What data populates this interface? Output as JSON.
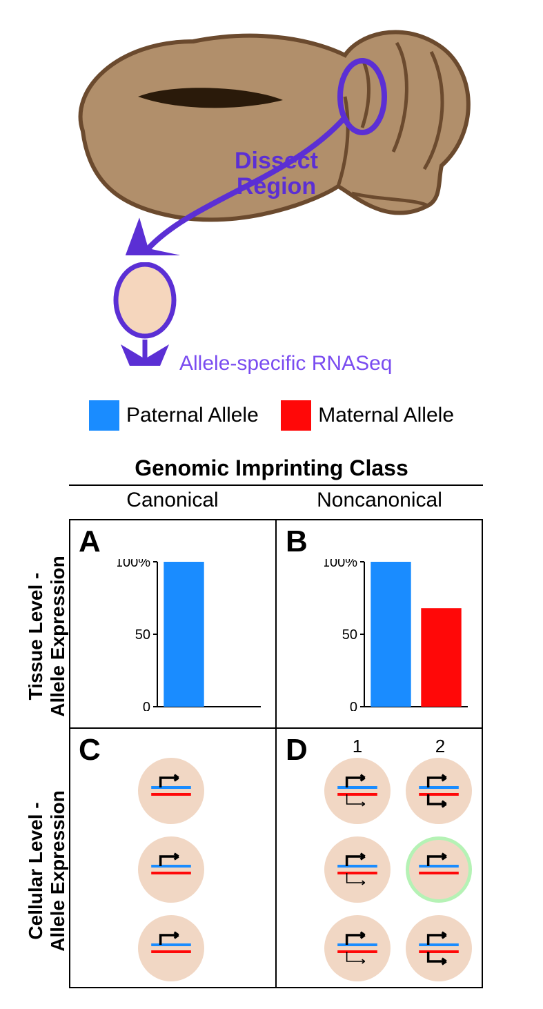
{
  "colors": {
    "brain_fill": "#b18f6b",
    "brain_stroke": "#6b4a2e",
    "brain_shadow": "#8a6a4a",
    "ventricle": "#2a1a0a",
    "region_stroke": "#5b2fd4",
    "region_fill": "#f5d6bd",
    "arrow": "#5b2fd4",
    "paternal": "#1a8cff",
    "maternal": "#ff0808",
    "cell_fill": "#f1d7c4",
    "cell_highlight": "#b5f2b5",
    "axis": "#000000",
    "gene_black": "#000000",
    "background": "#ffffff"
  },
  "labels": {
    "dissect": "Dissect\nRegion",
    "rnaseq": "Allele-specific RNASeq",
    "paternal": "Paternal Allele",
    "maternal": "Maternal Allele",
    "table_title": "Genomic Imprinting Class",
    "col_canonical": "Canonical",
    "col_noncanonical": "Noncanonical",
    "row_tissue": "Tissue Level -\nAllele Expression",
    "row_cellular": "Cellular Level -\nAllele Expression"
  },
  "panels": {
    "A": "A",
    "B": "B",
    "C": "C",
    "D": "D",
    "D1": "1",
    "D2": "2"
  },
  "chartA": {
    "type": "bar",
    "ylim": [
      0,
      100
    ],
    "yticks": [
      0,
      50,
      100
    ],
    "ytick_labels": [
      "0",
      "50",
      "100%"
    ],
    "bars": [
      {
        "value": 100,
        "color": "#1a8cff"
      },
      {
        "value": 0,
        "color": "#ff0808"
      }
    ],
    "bar_width": 0.8,
    "axis_color": "#000000"
  },
  "chartB": {
    "type": "bar",
    "ylim": [
      0,
      100
    ],
    "yticks": [
      0,
      50,
      100
    ],
    "ytick_labels": [
      "0",
      "50",
      "100%"
    ],
    "bars": [
      {
        "value": 100,
        "color": "#1a8cff"
      },
      {
        "value": 68,
        "color": "#ff0808"
      }
    ],
    "bar_width": 0.8,
    "axis_color": "#000000"
  },
  "panelC": {
    "columns": 1,
    "rows": 3,
    "cell_diameter": 96,
    "cells": [
      {
        "paternal_strength": "strong",
        "maternal_strength": "none",
        "highlight": false
      },
      {
        "paternal_strength": "strong",
        "maternal_strength": "none",
        "highlight": false
      },
      {
        "paternal_strength": "strong",
        "maternal_strength": "none",
        "highlight": false
      }
    ]
  },
  "panelD": {
    "columns": 2,
    "rows": 3,
    "cell_diameter": 96,
    "cells_col1": [
      {
        "paternal_strength": "strong",
        "maternal_strength": "weak",
        "highlight": false
      },
      {
        "paternal_strength": "strong",
        "maternal_strength": "weak",
        "highlight": false
      },
      {
        "paternal_strength": "strong",
        "maternal_strength": "weak",
        "highlight": false
      }
    ],
    "cells_col2": [
      {
        "paternal_strength": "strong",
        "maternal_strength": "strong",
        "highlight": false
      },
      {
        "paternal_strength": "strong",
        "maternal_strength": "none",
        "highlight": true
      },
      {
        "paternal_strength": "strong",
        "maternal_strength": "strong",
        "highlight": false
      }
    ]
  }
}
